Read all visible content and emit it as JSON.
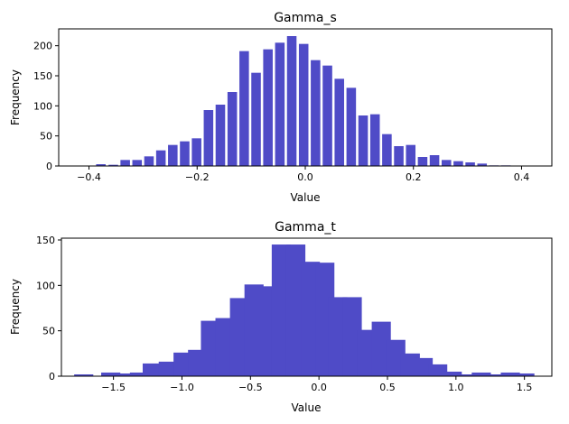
{
  "colors": {
    "bar": "#4f4bc7",
    "axis": "#000000",
    "background": "#ffffff"
  },
  "chart_data": [
    {
      "type": "bar",
      "title": "Gamma_s",
      "xlabel": "Value",
      "ylabel": "Frequency",
      "grid": false,
      "xlim": [
        -0.456,
        0.456
      ],
      "ylim": [
        0,
        228
      ],
      "bin_width": 0.0215,
      "xticks": [
        -0.4,
        -0.2,
        0.0,
        0.2,
        0.4
      ],
      "xtick_labels": [
        "−0.4",
        "−0.2",
        "0.0",
        "0.2",
        "0.4"
      ],
      "yticks": [
        0,
        50,
        100,
        150,
        200
      ],
      "ytick_labels": [
        "0",
        "50",
        "100",
        "150",
        "200"
      ],
      "x": [
        -0.378,
        -0.355,
        -0.333,
        -0.311,
        -0.289,
        -0.267,
        -0.245,
        -0.223,
        -0.201,
        -0.179,
        -0.157,
        -0.135,
        -0.113,
        -0.091,
        -0.069,
        -0.047,
        -0.025,
        -0.003,
        0.019,
        0.041,
        0.063,
        0.085,
        0.107,
        0.129,
        0.151,
        0.173,
        0.195,
        0.217,
        0.239,
        0.261,
        0.283,
        0.305,
        0.327,
        0.349,
        0.371
      ],
      "values": [
        3,
        2,
        10,
        10,
        16,
        26,
        35,
        41,
        46,
        93,
        102,
        123,
        191,
        155,
        194,
        205,
        216,
        203,
        176,
        167,
        145,
        130,
        84,
        86,
        53,
        33,
        35,
        15,
        18,
        10,
        8,
        6,
        4,
        1,
        1
      ]
    },
    {
      "type": "bar",
      "title": "Gamma_t",
      "xlabel": "Value",
      "ylabel": "Frequency",
      "grid": false,
      "xlim": [
        -1.88,
        1.7
      ],
      "ylim": [
        0,
        152
      ],
      "bin_width": 0.17,
      "xticks": [
        -1.5,
        -1.0,
        -0.5,
        0.0,
        0.5,
        1.0,
        1.5
      ],
      "xtick_labels": [
        "−1.5",
        "−1.0",
        "−0.5",
        "0.0",
        "0.5",
        "1.0",
        "1.5"
      ],
      "yticks": [
        0,
        50,
        100,
        150
      ],
      "ytick_labels": [
        "0",
        "50",
        "100",
        "150"
      ],
      "x": [
        -1.717,
        -1.52,
        -1.417,
        -1.31,
        -1.217,
        -1.1,
        -0.992,
        -0.886,
        -0.792,
        -0.686,
        -0.58,
        -0.474,
        -0.381,
        -0.275,
        -0.169,
        -0.063,
        0.043,
        0.137,
        0.243,
        0.349,
        0.455,
        0.561,
        0.667,
        0.761,
        0.867,
        0.973,
        1.079,
        1.185,
        1.291,
        1.397,
        1.503
      ],
      "values": [
        2,
        4,
        3,
        4,
        14,
        16,
        26,
        29,
        61,
        64,
        86,
        101,
        99,
        145,
        145,
        126,
        125,
        87,
        87,
        51,
        60,
        40,
        25,
        20,
        13,
        5,
        2,
        4,
        2,
        4,
        3
      ]
    }
  ]
}
